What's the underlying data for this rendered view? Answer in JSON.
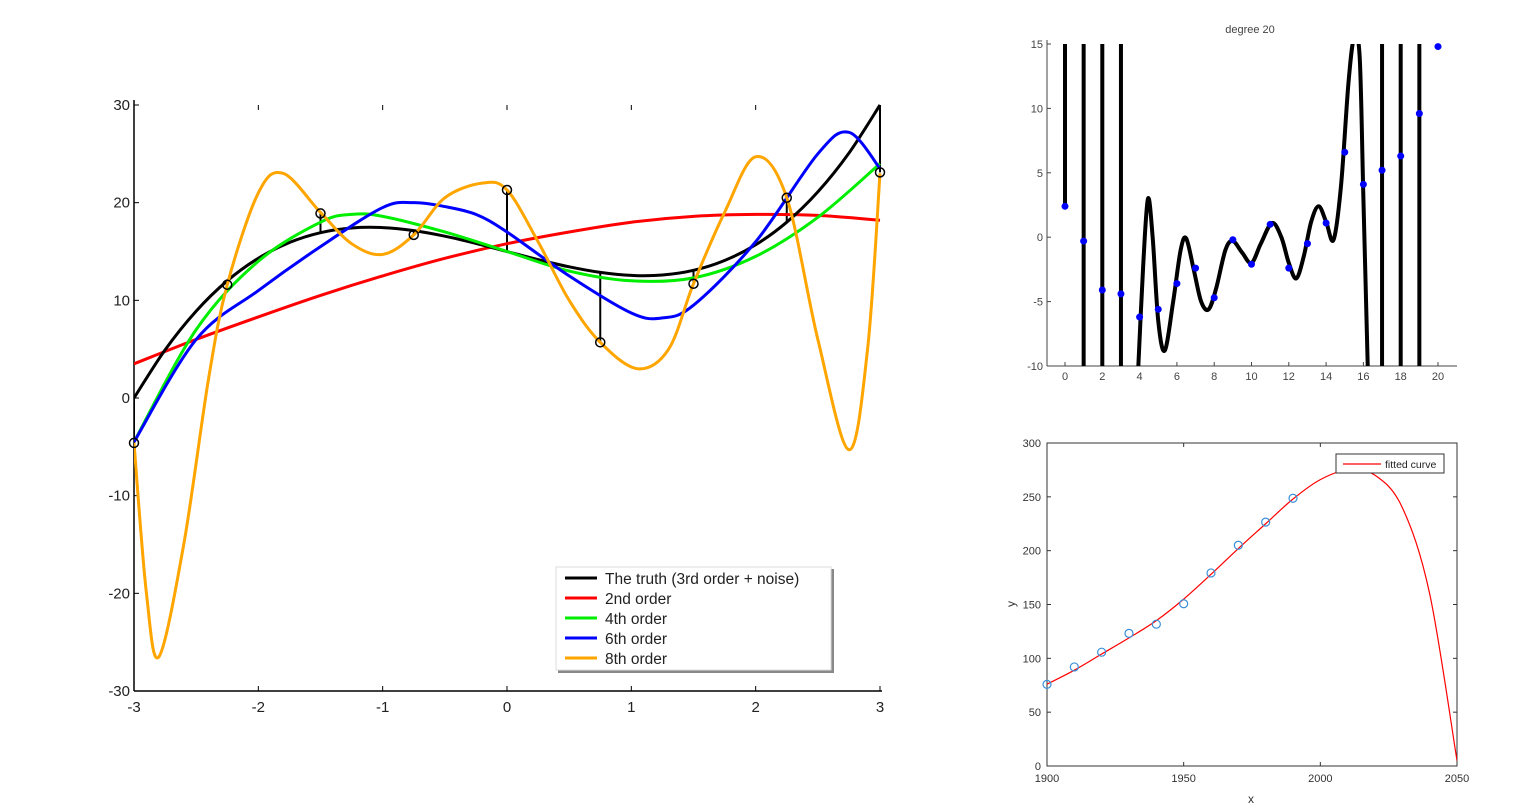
{
  "chart_data": [
    {
      "type": "line",
      "title": "",
      "xlabel": "",
      "ylabel": "",
      "xlim": [
        -3,
        3
      ],
      "ylim": [
        -30,
        30
      ],
      "xticks": [
        -3,
        -2,
        -1,
        0,
        1,
        2,
        3
      ],
      "yticks": [
        -30,
        -20,
        -10,
        0,
        10,
        20,
        30
      ],
      "legend_position": "bottom-right",
      "points": [
        [
          -3,
          -4.6
        ],
        [
          -2.25,
          11.6
        ],
        [
          -1.5,
          18.9
        ],
        [
          -0.75,
          16.7
        ],
        [
          0,
          21.3
        ],
        [
          0.75,
          5.7
        ],
        [
          1.5,
          11.7
        ],
        [
          2.25,
          20.5
        ],
        [
          3,
          23.1
        ]
      ],
      "series": [
        {
          "name": "The truth (3rd order + noise)",
          "color": "#000000",
          "data": [
            [
              -3,
              0
            ],
            [
              -2.75,
              4.93
            ],
            [
              -2.5,
              8.9
            ],
            [
              -2.25,
              12.0
            ],
            [
              -2,
              14.31
            ],
            [
              -1.75,
              15.92
            ],
            [
              -1.5,
              16.93
            ],
            [
              -1.25,
              17.41
            ],
            [
              -1,
              17.45
            ],
            [
              -0.75,
              17.14
            ],
            [
              -0.5,
              16.57
            ],
            [
              -0.25,
              15.83
            ],
            [
              0,
              15
            ],
            [
              0.25,
              14.17
            ],
            [
              0.5,
              13.43
            ],
            [
              0.75,
              12.86
            ],
            [
              1,
              12.55
            ],
            [
              1.25,
              12.59
            ],
            [
              1.5,
              13.07
            ],
            [
              1.75,
              14.08
            ],
            [
              2,
              15.69
            ],
            [
              2.25,
              18.0
            ],
            [
              2.5,
              21.1
            ],
            [
              2.75,
              25.07
            ],
            [
              3,
              30
            ]
          ]
        },
        {
          "name": "2nd order",
          "color": "#ff0000",
          "data": [
            [
              -3,
              3.5
            ],
            [
              -2.5,
              6
            ],
            [
              -2,
              8.3
            ],
            [
              -1.5,
              10.5
            ],
            [
              -1,
              12.5
            ],
            [
              -0.5,
              14.3
            ],
            [
              0,
              15.8
            ],
            [
              0.5,
              17
            ],
            [
              1,
              18
            ],
            [
              1.5,
              18.6
            ],
            [
              2,
              18.8
            ],
            [
              2.5,
              18.7
            ],
            [
              3,
              18.2
            ]
          ]
        },
        {
          "name": "4th order",
          "color": "#00ee00",
          "data": [
            [
              -3,
              -4.5
            ],
            [
              -2.5,
              7
            ],
            [
              -2,
              14
            ],
            [
              -1.5,
              18
            ],
            [
              -1.25,
              18.8
            ],
            [
              -1,
              18.6
            ],
            [
              -0.5,
              17
            ],
            [
              0,
              15
            ],
            [
              0.5,
              13
            ],
            [
              1,
              12
            ],
            [
              1.5,
              12.3
            ],
            [
              2,
              14.5
            ],
            [
              2.5,
              18.5
            ],
            [
              3,
              24
            ]
          ]
        },
        {
          "name": "6th order",
          "color": "#0000ff",
          "data": [
            [
              -3,
              -4.5
            ],
            [
              -2.5,
              6
            ],
            [
              -2,
              11
            ],
            [
              -1.5,
              15.5
            ],
            [
              -1,
              19.5
            ],
            [
              -0.75,
              20
            ],
            [
              -0.5,
              19.6
            ],
            [
              -0.25,
              18.8
            ],
            [
              0,
              17
            ],
            [
              0.5,
              12.5
            ],
            [
              1,
              8.7
            ],
            [
              1.25,
              8.2
            ],
            [
              1.5,
              9.5
            ],
            [
              2,
              16
            ],
            [
              2.5,
              25
            ],
            [
              2.75,
              27.2
            ],
            [
              3,
              23.5
            ]
          ]
        },
        {
          "name": "8th order",
          "color": "#ffa500",
          "data": [
            [
              -3,
              -4.6
            ],
            [
              -2.9,
              -20
            ],
            [
              -2.8,
              -26.5
            ],
            [
              -2.6,
              -15
            ],
            [
              -2.4,
              2
            ],
            [
              -2.25,
              11.6
            ],
            [
              -2,
              21
            ],
            [
              -1.8,
              23
            ],
            [
              -1.5,
              19
            ],
            [
              -1.25,
              15.8
            ],
            [
              -1,
              14.7
            ],
            [
              -0.75,
              16.7
            ],
            [
              -0.5,
              20.5
            ],
            [
              -0.2,
              22
            ],
            [
              0,
              21.3
            ],
            [
              0.25,
              16
            ],
            [
              0.5,
              10
            ],
            [
              0.75,
              5.7
            ],
            [
              1.05,
              3
            ],
            [
              1.3,
              5
            ],
            [
              1.5,
              11.7
            ],
            [
              1.75,
              19
            ],
            [
              2,
              24.7
            ],
            [
              2.25,
              20.5
            ],
            [
              2.5,
              6
            ],
            [
              2.75,
              -5.3
            ],
            [
              2.9,
              5
            ],
            [
              3,
              23
            ]
          ]
        }
      ]
    },
    {
      "type": "line",
      "title": "degree 20",
      "xlim": [
        -1,
        21
      ],
      "ylim": [
        -10,
        15
      ],
      "xticks": [
        0,
        2,
        4,
        6,
        8,
        10,
        12,
        14,
        16,
        18,
        20
      ],
      "yticks": [
        -10,
        -5,
        0,
        5,
        10,
        15
      ],
      "points": [
        [
          0,
          2.4
        ],
        [
          1,
          -0.3
        ],
        [
          2,
          -4.1
        ],
        [
          3,
          -4.4
        ],
        [
          4,
          -6.2
        ],
        [
          5,
          -5.6
        ],
        [
          6,
          -3.6
        ],
        [
          7,
          -2.4
        ],
        [
          8,
          -4.7
        ],
        [
          9,
          -0.2
        ],
        [
          10,
          -2.1
        ],
        [
          11,
          1.0
        ],
        [
          12,
          -2.4
        ],
        [
          13,
          -0.5
        ],
        [
          14,
          1.1
        ],
        [
          15,
          6.6
        ],
        [
          16,
          4.1
        ],
        [
          17,
          5.2
        ],
        [
          18,
          6.3
        ],
        [
          19,
          9.6
        ],
        [
          20,
          14.8
        ]
      ],
      "point_color": "#0000ff",
      "curve": [
        [
          3.9,
          -11
        ],
        [
          4.2,
          -2
        ],
        [
          4.45,
          3
        ],
        [
          4.7,
          0
        ],
        [
          5.0,
          -6.5
        ],
        [
          5.35,
          -8.8
        ],
        [
          5.8,
          -5
        ],
        [
          6.2,
          -1
        ],
        [
          6.5,
          -0.1
        ],
        [
          6.9,
          -2.5
        ],
        [
          7.3,
          -5
        ],
        [
          7.7,
          -5.6
        ],
        [
          8.1,
          -4
        ],
        [
          8.6,
          -1
        ],
        [
          9.0,
          -0.3
        ],
        [
          9.5,
          -1.2
        ],
        [
          10.0,
          -2
        ],
        [
          10.5,
          -0.5
        ],
        [
          11.1,
          1.1
        ],
        [
          11.6,
          0
        ],
        [
          12.0,
          -2
        ],
        [
          12.4,
          -3.2
        ],
        [
          12.8,
          -1.5
        ],
        [
          13.2,
          1.2
        ],
        [
          13.6,
          2.4
        ],
        [
          14.0,
          1.2
        ],
        [
          14.4,
          -0.2
        ],
        [
          14.8,
          4
        ],
        [
          15.2,
          12
        ],
        [
          15.5,
          15.5
        ],
        [
          15.8,
          14
        ],
        [
          16.0,
          3
        ],
        [
          16.25,
          -11
        ]
      ],
      "curve_color": "#000000",
      "vertical_lines": [
        [
          0,
          2.4,
          15
        ],
        [
          1,
          -10,
          15
        ],
        [
          2,
          -10,
          15
        ],
        [
          3,
          -10,
          15
        ],
        [
          17,
          -10,
          15
        ],
        [
          18,
          -10,
          15
        ],
        [
          19,
          -10,
          15
        ]
      ]
    },
    {
      "type": "line",
      "title": "",
      "xlabel": "x",
      "ylabel": "y",
      "xlim": [
        1900,
        2050
      ],
      "ylim": [
        0,
        300
      ],
      "xticks": [
        1900,
        1950,
        2000,
        2050
      ],
      "yticks": [
        0,
        50,
        100,
        150,
        200,
        250,
        300
      ],
      "legend_position": "top-right",
      "legend": [
        "fitted curve"
      ],
      "points": [
        [
          1900,
          75.8
        ],
        [
          1910,
          92
        ],
        [
          1920,
          105.7
        ],
        [
          1930,
          123.2
        ],
        [
          1940,
          131.7
        ],
        [
          1950,
          150.7
        ],
        [
          1960,
          179.3
        ],
        [
          1970,
          205
        ],
        [
          1980,
          226.5
        ],
        [
          1990,
          248.7
        ]
      ],
      "point_color": "#3a8fd9",
      "curve": [
        [
          1900,
          76
        ],
        [
          1910,
          89
        ],
        [
          1920,
          104
        ],
        [
          1930,
          119
        ],
        [
          1940,
          135
        ],
        [
          1950,
          155
        ],
        [
          1960,
          178
        ],
        [
          1970,
          202
        ],
        [
          1980,
          225
        ],
        [
          1990,
          248
        ],
        [
          2000,
          266
        ],
        [
          2010,
          275
        ],
        [
          2020,
          270
        ],
        [
          2030,
          240
        ],
        [
          2040,
          160
        ],
        [
          2050,
          5
        ]
      ],
      "curve_color": "#ff0000"
    }
  ]
}
